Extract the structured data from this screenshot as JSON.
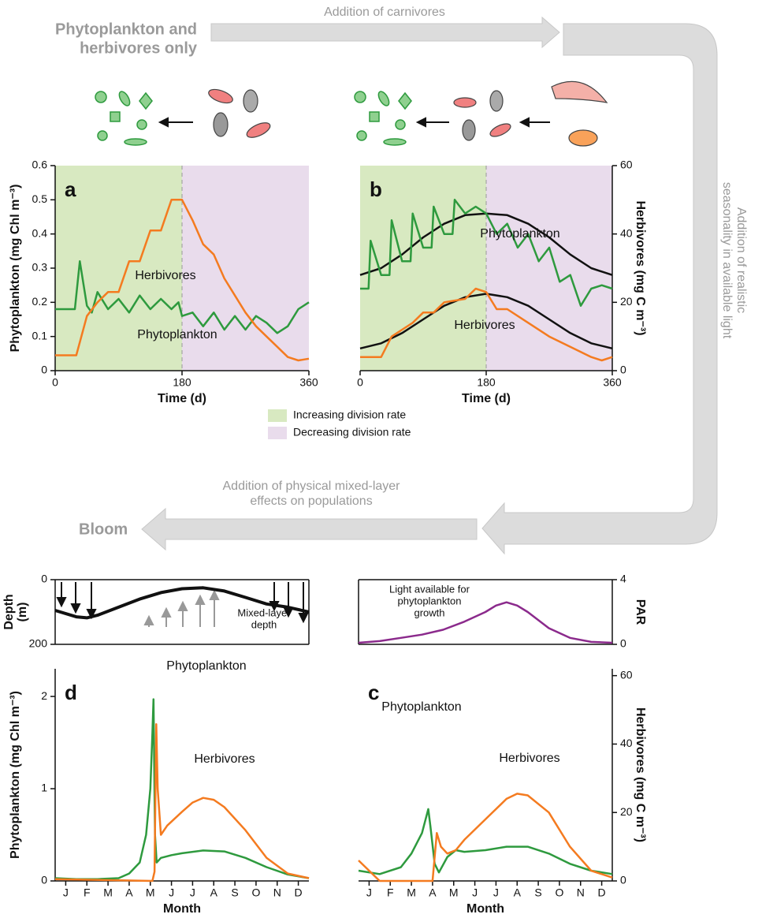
{
  "diagram": {
    "top_left": [
      "Phytoplankton and",
      "herbivores only"
    ],
    "top_arrow": "Addition of carnivores",
    "right_arrow": [
      "Addition of realistic",
      "seasonality in available light"
    ],
    "bottom_arrow": [
      "Addition of physical mixed-layer",
      "effects on populations"
    ],
    "bloom": "Bloom",
    "legend": [
      {
        "label": "Increasing division rate",
        "color": "#d8e9c1"
      },
      {
        "label": "Decreasing division rate",
        "color": "#e9dcec"
      }
    ]
  },
  "chart_data": [
    {
      "type": "line",
      "panel_label": "a",
      "xlabel": "Time (d)",
      "ylabel": "Phytoplankton (mg Chl m⁻³)",
      "yaxis": "left",
      "xlim": [
        0,
        360
      ],
      "xticks": [
        0,
        180,
        360
      ],
      "ylim": [
        0,
        0.6
      ],
      "yticks": [
        0,
        0.1,
        0.2,
        0.3,
        0.4,
        0.5,
        0.6
      ],
      "regions": [
        {
          "start": 0,
          "end": 180,
          "color": "#d8e9c1"
        },
        {
          "start": 180,
          "end": 360,
          "color": "#e9dcec"
        }
      ],
      "series": [
        {
          "name": "Phytoplankton",
          "color": "#2e9a3e",
          "x": [
            0,
            28,
            35,
            45,
            52,
            60,
            75,
            90,
            105,
            120,
            135,
            150,
            165,
            175,
            180,
            195,
            210,
            225,
            240,
            255,
            270,
            285,
            300,
            315,
            330,
            345,
            360
          ],
          "values": [
            0.18,
            0.18,
            0.32,
            0.19,
            0.17,
            0.23,
            0.18,
            0.21,
            0.17,
            0.22,
            0.18,
            0.21,
            0.18,
            0.2,
            0.16,
            0.17,
            0.13,
            0.17,
            0.12,
            0.16,
            0.12,
            0.16,
            0.14,
            0.11,
            0.13,
            0.18,
            0.2
          ]
        },
        {
          "name": "Herbivores",
          "color": "#f47b20",
          "x": [
            0,
            30,
            45,
            60,
            75,
            90,
            105,
            120,
            135,
            150,
            165,
            180,
            195,
            210,
            225,
            240,
            255,
            270,
            285,
            300,
            315,
            330,
            345,
            360
          ],
          "values": [
            0.045,
            0.045,
            0.16,
            0.2,
            0.23,
            0.23,
            0.32,
            0.32,
            0.41,
            0.41,
            0.5,
            0.5,
            0.44,
            0.37,
            0.34,
            0.27,
            0.22,
            0.17,
            0.13,
            0.1,
            0.07,
            0.04,
            0.03,
            0.035
          ]
        }
      ]
    },
    {
      "type": "line",
      "panel_label": "b",
      "xlabel": "Time (d)",
      "ylabel": "Herbivores (mg C m⁻³)",
      "yaxis": "right",
      "xlim": [
        0,
        360
      ],
      "xticks": [
        0,
        180,
        360
      ],
      "ylim": [
        0,
        60
      ],
      "yticks": [
        0,
        20,
        40,
        60
      ],
      "regions": [
        {
          "start": 0,
          "end": 180,
          "color": "#d8e9c1"
        },
        {
          "start": 180,
          "end": 360,
          "color": "#e9dcec"
        }
      ],
      "series": [
        {
          "color": "#111111",
          "x": [
            0,
            30,
            60,
            90,
            120,
            150,
            180,
            210,
            240,
            270,
            300,
            330,
            360
          ],
          "values": [
            28,
            30,
            34,
            39,
            43,
            45.5,
            46,
            45.5,
            43,
            39,
            34,
            30,
            28
          ]
        },
        {
          "color": "#111111",
          "x": [
            0,
            30,
            60,
            90,
            120,
            150,
            180,
            210,
            240,
            270,
            300,
            330,
            360
          ],
          "values": [
            6.5,
            8,
            11,
            15,
            19,
            21.5,
            22.5,
            21.5,
            19,
            15,
            11,
            8,
            6.5
          ]
        },
        {
          "name": "Phytoplankton",
          "color": "#2e9a3e",
          "x": [
            0,
            12,
            15,
            30,
            42,
            45,
            60,
            72,
            75,
            90,
            102,
            105,
            120,
            132,
            135,
            150,
            165,
            180,
            195,
            210,
            225,
            240,
            255,
            270,
            285,
            300,
            315,
            330,
            345,
            360
          ],
          "values": [
            24,
            24,
            38,
            28,
            28,
            44,
            32,
            32,
            46,
            36,
            36,
            48,
            40,
            40,
            50,
            46,
            48,
            46,
            40,
            43,
            36,
            40,
            32,
            36,
            26,
            28,
            19,
            24,
            25,
            24
          ]
        },
        {
          "name": "Herbivores",
          "color": "#f47b20",
          "x": [
            0,
            30,
            45,
            60,
            75,
            90,
            105,
            120,
            150,
            165,
            180,
            195,
            210,
            240,
            270,
            300,
            330,
            345,
            360
          ],
          "values": [
            4,
            4,
            10,
            12,
            14,
            17,
            17,
            20,
            21,
            24,
            23,
            18,
            18,
            14,
            10,
            7,
            4,
            3,
            4
          ]
        }
      ]
    },
    {
      "type": "line",
      "ylabel": [
        "Depth",
        "(m)"
      ],
      "yaxis": "left",
      "annotation": [
        "Mixed-layer",
        "depth"
      ],
      "annotation_color": "#111111",
      "xlim": [
        0,
        12
      ],
      "ylim": [
        200,
        0
      ],
      "yticks": [
        0,
        200
      ],
      "series": [
        {
          "color": "#111111",
          "x": [
            0,
            1,
            1.5,
            2,
            3,
            4,
            5,
            6,
            7,
            8,
            9,
            10,
            11,
            12
          ],
          "values": [
            95,
            115,
            118,
            110,
            85,
            60,
            40,
            28,
            25,
            35,
            55,
            75,
            85,
            100
          ]
        }
      ]
    },
    {
      "type": "line",
      "ylabel": "PAR",
      "yaxis": "right",
      "annotation": [
        "Light available for",
        "phytoplankton",
        "growth"
      ],
      "annotation_color": "#8b2a8c",
      "xlim": [
        0,
        12
      ],
      "ylim": [
        0,
        4
      ],
      "yticks": [
        0,
        4
      ],
      "series": [
        {
          "color": "#8b2a8c",
          "x": [
            0,
            1,
            2,
            3,
            4,
            5,
            6,
            6.5,
            7,
            7.5,
            8,
            9,
            10,
            11,
            12
          ],
          "values": [
            0.1,
            0.2,
            0.4,
            0.6,
            0.9,
            1.4,
            2.0,
            2.4,
            2.6,
            2.4,
            2.0,
            1.0,
            0.4,
            0.15,
            0.1
          ]
        }
      ]
    },
    {
      "type": "line",
      "panel_label": "d",
      "xlabel": "Month",
      "ylabel": "Phytoplankton (mg Chl m⁻³)",
      "yaxis": "left",
      "xlim": [
        0,
        12
      ],
      "ylim": [
        0,
        2.3
      ],
      "yticks": [
        0,
        1,
        2
      ],
      "xticks": [
        {
          "value": 0.5,
          "label": "J"
        },
        {
          "value": 1.5,
          "label": "F"
        },
        {
          "value": 2.5,
          "label": "M"
        },
        {
          "value": 3.5,
          "label": "A"
        },
        {
          "value": 4.5,
          "label": "M"
        },
        {
          "value": 5.5,
          "label": "J"
        },
        {
          "value": 6.5,
          "label": "J"
        },
        {
          "value": 7.5,
          "label": "A"
        },
        {
          "value": 8.5,
          "label": "S"
        },
        {
          "value": 9.5,
          "label": "O"
        },
        {
          "value": 10.5,
          "label": "N"
        },
        {
          "value": 11.5,
          "label": "D"
        }
      ],
      "series": [
        {
          "name": "Phytoplankton",
          "color": "#2e9a3e",
          "x": [
            0,
            1,
            2,
            3,
            3.5,
            4,
            4.3,
            4.5,
            4.6,
            4.65,
            4.72,
            4.8,
            5,
            5.5,
            6,
            7,
            8,
            9,
            10,
            11,
            12
          ],
          "values": [
            0.03,
            0.02,
            0.02,
            0.03,
            0.08,
            0.2,
            0.5,
            1.0,
            1.6,
            1.97,
            0.5,
            0.2,
            0.25,
            0.28,
            0.3,
            0.33,
            0.32,
            0.25,
            0.15,
            0.07,
            0.03
          ]
        },
        {
          "name": "Herbivores",
          "color": "#f47b20",
          "x": [
            0,
            4.6,
            4.7,
            4.78,
            4.85,
            5,
            5.3,
            6,
            6.5,
            7,
            7.5,
            8,
            9,
            10,
            11,
            12
          ],
          "values": [
            0.02,
            0,
            0.1,
            1.7,
            1.0,
            0.5,
            0.6,
            0.75,
            0.85,
            0.9,
            0.88,
            0.8,
            0.55,
            0.25,
            0.08,
            0.03
          ]
        }
      ]
    },
    {
      "type": "line",
      "panel_label": "c",
      "xlabel": "Month",
      "ylabel": "Herbivores (mg C m⁻³)",
      "yaxis": "right",
      "xlim": [
        0,
        12
      ],
      "ylim": [
        0,
        62
      ],
      "yticks": [
        0,
        20,
        40,
        60
      ],
      "xticks": [
        {
          "value": 0.5,
          "label": "J"
        },
        {
          "value": 1.5,
          "label": "F"
        },
        {
          "value": 2.5,
          "label": "M"
        },
        {
          "value": 3.5,
          "label": "A"
        },
        {
          "value": 4.5,
          "label": "M"
        },
        {
          "value": 5.5,
          "label": "J"
        },
        {
          "value": 6.5,
          "label": "J"
        },
        {
          "value": 7.5,
          "label": "A"
        },
        {
          "value": 8.5,
          "label": "S"
        },
        {
          "value": 9.5,
          "label": "O"
        },
        {
          "value": 10.5,
          "label": "N"
        },
        {
          "value": 11.5,
          "label": "D"
        }
      ],
      "series": [
        {
          "name": "Phytoplankton",
          "color": "#2e9a3e",
          "x": [
            0,
            1,
            2,
            2.5,
            3,
            3.3,
            3.4,
            3.6,
            3.8,
            4.2,
            4.6,
            5,
            6,
            7,
            8,
            9,
            10,
            11,
            12
          ],
          "values": [
            3,
            2,
            4,
            8,
            14,
            21,
            16,
            5,
            2.5,
            7,
            9,
            8.5,
            9,
            10,
            10,
            8,
            5,
            3,
            2
          ]
        },
        {
          "name": "Herbivores",
          "color": "#f47b20",
          "x": [
            0,
            0.5,
            1,
            3.5,
            3.7,
            3.9,
            4.2,
            4.6,
            5,
            6,
            7,
            7.5,
            8,
            9,
            10,
            11,
            12
          ],
          "values": [
            6,
            3,
            0,
            0,
            14,
            10,
            8,
            9,
            12,
            18,
            24,
            25.5,
            25,
            20,
            10,
            3,
            1
          ]
        }
      ]
    }
  ]
}
